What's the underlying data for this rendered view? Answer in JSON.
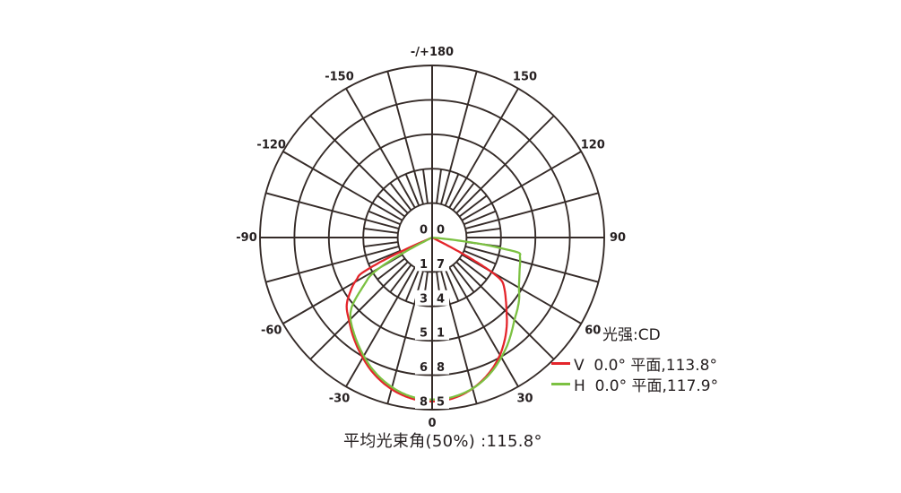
{
  "page": {
    "background": "#ffffff"
  },
  "colors": {
    "grid": "#352b28",
    "text": "#262021",
    "series_v": "#e4252b",
    "series_h": "#7cc142",
    "background": "#ffffff"
  },
  "chart_data": {
    "type": "line",
    "subtype": "polar-photometric-distribution",
    "units_label": "光强:CD",
    "angle_axis": {
      "label_step_deg": 30,
      "spoke_step_deg": 15,
      "minor_spoke_step_deg": 7.5,
      "labels": [
        {
          "angle": 180,
          "text": "-/+180"
        },
        {
          "angle": -150,
          "text": "-150"
        },
        {
          "angle": 150,
          "text": "150"
        },
        {
          "angle": -120,
          "text": "-120"
        },
        {
          "angle": 120,
          "text": "120"
        },
        {
          "angle": -90,
          "text": "-90"
        },
        {
          "angle": 90,
          "text": "90"
        },
        {
          "angle": -60,
          "text": "-60"
        },
        {
          "angle": 60,
          "text": "60"
        },
        {
          "angle": -30,
          "text": "-30"
        },
        {
          "angle": 30,
          "text": "30"
        },
        {
          "angle": 0,
          "text": "0"
        }
      ]
    },
    "radial_axis": {
      "unit": "CD",
      "max": 85,
      "ticks": [
        0,
        17,
        34,
        51,
        68,
        85
      ],
      "tick_display_pairs": [
        [
          "0",
          "0"
        ],
        [
          "1",
          "7"
        ],
        [
          "3",
          "4"
        ],
        [
          "5",
          "1"
        ],
        [
          "6",
          "8"
        ],
        [
          "8",
          "5"
        ]
      ]
    },
    "series": [
      {
        "id": "V",
        "name": "V 0.0° 平面,113.8°",
        "plane": "V 0.0°",
        "beam_angle_deg": 113.8,
        "color": "#e4252b",
        "angles_deg": [
          -67,
          -66.5,
          -65.5,
          -64.5,
          -63,
          -61,
          -59,
          -56,
          -53,
          -50,
          -45,
          -40,
          -35,
          -30,
          -25,
          -20,
          -15,
          -10,
          -5,
          0,
          5,
          10,
          15,
          20,
          25,
          30,
          35,
          40,
          45,
          50,
          55,
          58,
          59.5,
          60.5,
          61.5,
          62.5,
          63.5
        ],
        "intensities_cd": [
          0,
          8,
          20,
          30,
          39.5,
          42.5,
          45.5,
          49,
          52.5,
          55,
          58,
          61.5,
          65,
          68.5,
          72,
          75,
          77.5,
          79.4,
          80.6,
          81,
          80.6,
          79.3,
          77.2,
          74.4,
          71,
          67,
          62.3,
          57.3,
          52,
          47.5,
          43.5,
          40.6,
          36,
          30,
          22,
          12,
          0
        ]
      },
      {
        "id": "H",
        "name": "H 0.0° 平面,117.9°",
        "plane": "H 0.0°",
        "beam_angle_deg": 117.9,
        "color": "#7cc142",
        "angles_deg": [
          -64,
          -63.2,
          -62.2,
          -61,
          -59.5,
          -58,
          -56,
          -54,
          -52,
          -50,
          -48,
          -45,
          -40,
          -35,
          -30,
          -25,
          -20,
          -15,
          -10,
          -5,
          0,
          5,
          10,
          15,
          20,
          25,
          30,
          35,
          40,
          45,
          50,
          55,
          60,
          65,
          70,
          75,
          78,
          80,
          81,
          82,
          83,
          84,
          85
        ],
        "intensities_cd": [
          0,
          6,
          14,
          24,
          32,
          36.5,
          39.5,
          43,
          47,
          51,
          54,
          57,
          60.5,
          64,
          67.5,
          71,
          74,
          76.5,
          78.5,
          79.7,
          80,
          79.8,
          78.8,
          77.2,
          74.8,
          71.8,
          68.3,
          64.8,
          61,
          57.5,
          55,
          52.5,
          49.5,
          47.5,
          46,
          45,
          44.3,
          43.5,
          36,
          28,
          18,
          8,
          0
        ]
      }
    ]
  },
  "legend": {
    "title": "光强:CD",
    "items": [
      {
        "label": "V  0.0° 平面,113.8°",
        "series": "V"
      },
      {
        "label": "H  0.0° 平面,117.9°",
        "series": "H"
      }
    ]
  },
  "footer": {
    "text": "平均光束角(50%) :115.8°",
    "average_beam_angle_deg": 115.8
  }
}
